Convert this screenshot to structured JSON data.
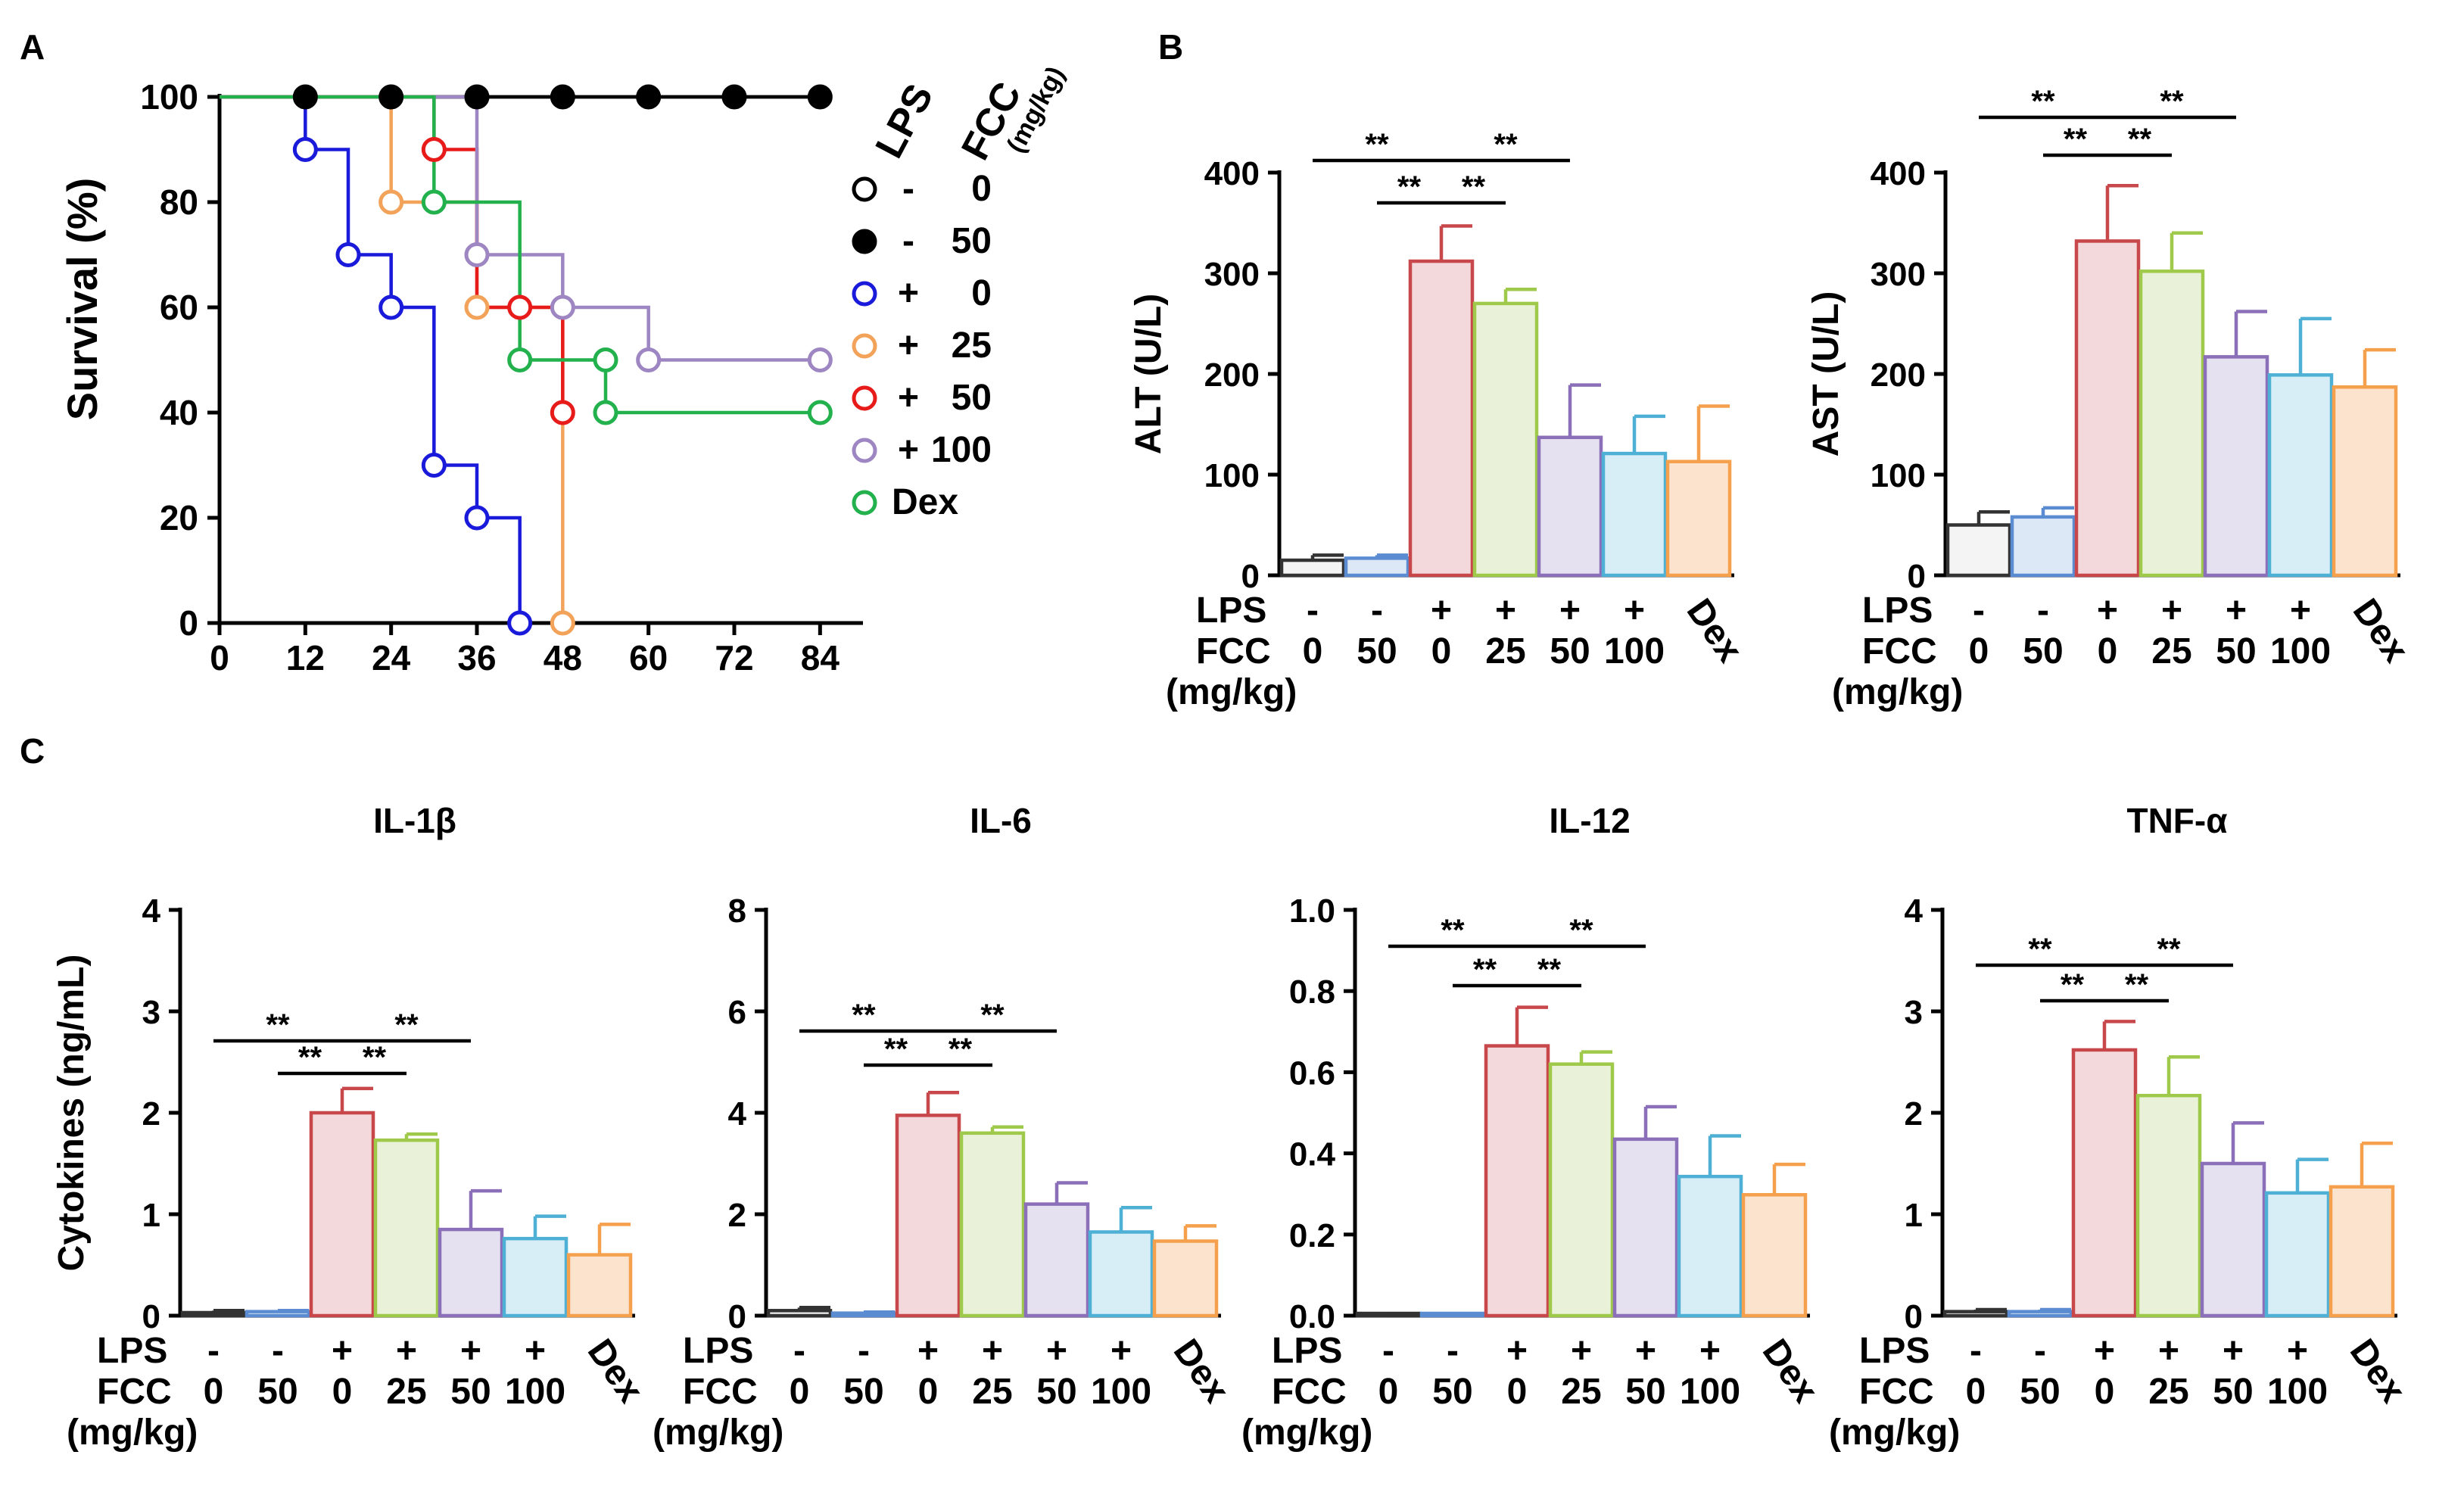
{
  "figure": {
    "panel_labels": [
      "A",
      "B",
      "C"
    ],
    "colors": {
      "axis": "#000000",
      "blue": "#1a1adb",
      "orange": "#f2a259",
      "red": "#e81b1b",
      "purple": "#9d86c2",
      "green": "#22b14c",
      "bar_gray_stroke": "#333333",
      "bar_gray_fill": "#f4f4f4",
      "bar_blue_stroke": "#5b8cd1",
      "bar_blue_fill": "#dce8f6",
      "bar_red_stroke": "#c8474a",
      "bar_red_fill": "#f3d9db",
      "bar_green_stroke": "#9fc94a",
      "bar_green_fill": "#e9f2d8",
      "bar_purple_stroke": "#8b6fb8",
      "bar_purple_fill": "#e6e1f0",
      "bar_cyan_stroke": "#4fb0d6",
      "bar_cyan_fill": "#d8eef7",
      "bar_orange_stroke": "#f5a04d",
      "bar_orange_fill": "#fce3ce"
    }
  },
  "chart_data": [
    {
      "id": "A",
      "type": "line",
      "subtype": "kaplan-meier survival",
      "title": "",
      "xlabel": "",
      "ylabel": "Survival (%)",
      "xlim": [
        0,
        90
      ],
      "ylim": [
        0,
        100
      ],
      "xticks": [
        0,
        12,
        24,
        36,
        48,
        60,
        72,
        84
      ],
      "yticks": [
        0,
        20,
        40,
        60,
        80,
        100
      ],
      "legend_headers": [
        "LPS",
        "FCC",
        "(mg/kg)"
      ],
      "legend_position": "right",
      "series": [
        {
          "name": "- 0",
          "lps": "-",
          "fcc": "0",
          "color": "#000000",
          "marker": "open",
          "x": [
            0,
            84
          ],
          "y": [
            100,
            100
          ],
          "markers_x": [],
          "markers_y": []
        },
        {
          "name": "- 50",
          "lps": "-",
          "fcc": "50",
          "color": "#000000",
          "marker": "filled",
          "x": [
            0,
            84
          ],
          "y": [
            100,
            100
          ],
          "markers_x": [
            12,
            24,
            36,
            48,
            60,
            72,
            84
          ],
          "markers_y": [
            100,
            100,
            100,
            100,
            100,
            100,
            100
          ]
        },
        {
          "name": "+ 0",
          "lps": "+",
          "fcc": "0",
          "color": "#1a1adb",
          "marker": "open",
          "x": [
            0,
            12,
            12,
            18,
            18,
            24,
            24,
            30,
            30,
            36,
            36,
            42,
            42
          ],
          "y": [
            100,
            100,
            90,
            90,
            70,
            70,
            60,
            60,
            30,
            30,
            20,
            20,
            0
          ],
          "markers_x": [
            12,
            18,
            24,
            30,
            36,
            42
          ],
          "markers_y": [
            90,
            70,
            60,
            30,
            20,
            0
          ]
        },
        {
          "name": "+ 25",
          "lps": "+",
          "fcc": "25",
          "color": "#f2a259",
          "marker": "open",
          "x": [
            0,
            24,
            24,
            36,
            36,
            48,
            48
          ],
          "y": [
            100,
            100,
            80,
            80,
            60,
            60,
            0
          ],
          "markers_x": [
            24,
            36,
            48
          ],
          "markers_y": [
            80,
            60,
            0
          ]
        },
        {
          "name": "+ 50",
          "lps": "+",
          "fcc": "50",
          "color": "#e81b1b",
          "marker": "open",
          "x": [
            0,
            30,
            30,
            36,
            36,
            42,
            42,
            48,
            48
          ],
          "y": [
            100,
            100,
            90,
            90,
            60,
            60,
            60,
            60,
            40
          ],
          "markers_x": [
            30,
            42,
            48
          ],
          "markers_y": [
            90,
            60,
            40
          ]
        },
        {
          "name": "+ 100",
          "lps": "+",
          "fcc": "100",
          "color": "#9d86c2",
          "marker": "open",
          "x": [
            0,
            36,
            36,
            48,
            48,
            60,
            60,
            84
          ],
          "y": [
            100,
            100,
            70,
            70,
            60,
            60,
            50,
            50
          ],
          "markers_x": [
            36,
            48,
            60,
            84
          ],
          "markers_y": [
            70,
            60,
            50,
            50
          ]
        },
        {
          "name": "Dex",
          "lps": "",
          "fcc": "",
          "color": "#22b14c",
          "marker": "open",
          "x": [
            0,
            30,
            30,
            42,
            42,
            54,
            54,
            84
          ],
          "y": [
            100,
            100,
            80,
            80,
            50,
            50,
            40,
            40
          ],
          "markers_x": [
            30,
            42,
            54,
            54,
            84
          ],
          "markers_y": [
            80,
            50,
            50,
            40,
            40
          ]
        }
      ]
    },
    {
      "id": "B-ALT",
      "type": "bar",
      "title": "",
      "ylabel": "ALT (U/L)",
      "ylim": [
        0,
        400
      ],
      "yticks": [
        0,
        100,
        200,
        300,
        400
      ],
      "categories": [
        "- / 0",
        "- / 50",
        "+ / 0",
        "+ / 25",
        "+ / 50",
        "+ / 100",
        "Dex"
      ],
      "values": [
        15,
        17,
        312,
        270,
        137,
        121,
        113
      ],
      "errors": [
        5,
        3,
        35,
        14,
        52,
        37,
        55
      ],
      "significance": [
        {
          "from": 1,
          "to": 2,
          "label": "**",
          "level": 1
        },
        {
          "from": 0,
          "to": 2,
          "label": "**",
          "level": 2
        },
        {
          "from": 2,
          "to": 3,
          "label": "**",
          "level": 1
        },
        {
          "from": 2,
          "to": 4,
          "label": "**",
          "level": 2
        }
      ]
    },
    {
      "id": "B-AST",
      "type": "bar",
      "title": "",
      "ylabel": "AST (U/L)",
      "ylim": [
        0,
        400
      ],
      "yticks": [
        0,
        100,
        200,
        300,
        400
      ],
      "categories": [
        "- / 0",
        "- / 50",
        "+ / 0",
        "+ / 25",
        "+ / 50",
        "+ / 100",
        "Dex"
      ],
      "values": [
        50,
        58,
        332,
        302,
        217,
        199,
        187
      ],
      "errors": [
        13,
        9,
        55,
        38,
        45,
        56,
        37
      ],
      "significance": [
        {
          "from": 1,
          "to": 2,
          "label": "**",
          "level": 1
        },
        {
          "from": 0,
          "to": 2,
          "label": "**",
          "level": 2
        },
        {
          "from": 2,
          "to": 3,
          "label": "**",
          "level": 1
        },
        {
          "from": 2,
          "to": 4,
          "label": "**",
          "level": 2
        }
      ]
    },
    {
      "id": "C-IL1b",
      "type": "bar",
      "title": "IL-1β",
      "ylabel": "Cytokines (ng/mL)",
      "ylim": [
        0,
        4
      ],
      "yticks": [
        0,
        1,
        2,
        3,
        4
      ],
      "categories": [
        "- / 0",
        "- / 50",
        "+ / 0",
        "+ / 25",
        "+ / 50",
        "+ / 100",
        "Dex"
      ],
      "values": [
        0.03,
        0.04,
        2.0,
        1.73,
        0.85,
        0.76,
        0.6
      ],
      "errors": [
        0.02,
        0.01,
        0.24,
        0.06,
        0.38,
        0.22,
        0.3
      ],
      "significance": [
        {
          "from": 1,
          "to": 2,
          "label": "**",
          "level": 1
        },
        {
          "from": 0,
          "to": 2,
          "label": "**",
          "level": 2
        },
        {
          "from": 2,
          "to": 3,
          "label": "**",
          "level": 1
        },
        {
          "from": 2,
          "to": 4,
          "label": "**",
          "level": 2
        }
      ]
    },
    {
      "id": "C-IL6",
      "type": "bar",
      "title": "IL-6",
      "ylabel": "",
      "ylim": [
        0,
        8
      ],
      "yticks": [
        0,
        2,
        4,
        6,
        8
      ],
      "categories": [
        "- / 0",
        "- / 50",
        "+ / 0",
        "+ / 25",
        "+ / 50",
        "+ / 100",
        "Dex"
      ],
      "values": [
        0.1,
        0.05,
        3.95,
        3.6,
        2.2,
        1.65,
        1.47
      ],
      "errors": [
        0.06,
        0.02,
        0.45,
        0.12,
        0.42,
        0.48,
        0.3
      ],
      "significance": [
        {
          "from": 1,
          "to": 2,
          "label": "**",
          "level": 1
        },
        {
          "from": 0,
          "to": 2,
          "label": "**",
          "level": 2
        },
        {
          "from": 2,
          "to": 3,
          "label": "**",
          "level": 1
        },
        {
          "from": 2,
          "to": 4,
          "label": "**",
          "level": 2
        }
      ]
    },
    {
      "id": "C-IL12",
      "type": "bar",
      "title": "IL-12",
      "ylabel": "",
      "ylim": [
        0,
        1.0
      ],
      "yticks": [
        0.0,
        0.2,
        0.4,
        0.6,
        0.8,
        1.0
      ],
      "ytick_labels": [
        "0.0",
        "0.2",
        "0.4",
        "0.6",
        "0.8",
        "1.0"
      ],
      "categories": [
        "- / 0",
        "- / 50",
        "+ / 0",
        "+ / 25",
        "+ / 50",
        "+ / 100",
        "Dex"
      ],
      "values": [
        0.003,
        0.003,
        0.665,
        0.62,
        0.435,
        0.343,
        0.298
      ],
      "errors": [
        0.002,
        0.001,
        0.095,
        0.03,
        0.08,
        0.1,
        0.075
      ],
      "significance": [
        {
          "from": 1,
          "to": 2,
          "label": "**",
          "level": 1
        },
        {
          "from": 0,
          "to": 2,
          "label": "**",
          "level": 2
        },
        {
          "from": 2,
          "to": 3,
          "label": "**",
          "level": 1
        },
        {
          "from": 2,
          "to": 4,
          "label": "**",
          "level": 2
        }
      ]
    },
    {
      "id": "C-TNFa",
      "type": "bar",
      "title": "TNF-α",
      "ylabel": "",
      "ylim": [
        0,
        4
      ],
      "yticks": [
        0,
        1,
        2,
        3,
        4
      ],
      "categories": [
        "- / 0",
        "- / 50",
        "+ / 0",
        "+ / 25",
        "+ / 50",
        "+ / 100",
        "Dex"
      ],
      "values": [
        0.04,
        0.04,
        2.62,
        2.17,
        1.5,
        1.21,
        1.27
      ],
      "errors": [
        0.02,
        0.02,
        0.28,
        0.38,
        0.4,
        0.33,
        0.43
      ],
      "significance": [
        {
          "from": 1,
          "to": 2,
          "label": "**",
          "level": 1
        },
        {
          "from": 0,
          "to": 2,
          "label": "**",
          "level": 2
        },
        {
          "from": 2,
          "to": 3,
          "label": "**",
          "level": 1
        },
        {
          "from": 2,
          "to": 4,
          "label": "**",
          "level": 2
        }
      ]
    }
  ],
  "bar_axis_rows": {
    "lps_label": "LPS",
    "fcc_label": "FCC",
    "unit_label": "(mg/kg)",
    "lps_values": [
      "-",
      "-",
      "+",
      "+",
      "+",
      "+"
    ],
    "fcc_values": [
      "0",
      "50",
      "0",
      "25",
      "50",
      "100"
    ],
    "dex_label": "Dex"
  }
}
